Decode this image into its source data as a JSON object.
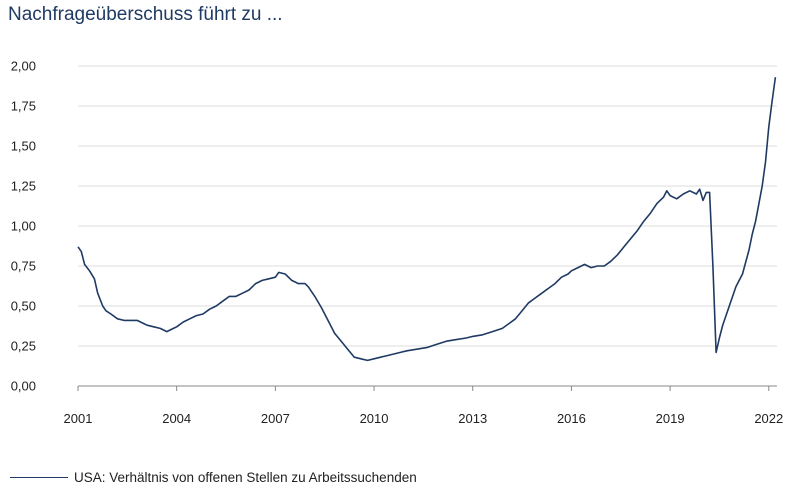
{
  "title": "Nachfrageüberschuss führt zu ...",
  "colors": {
    "series": "#1f3a63",
    "grid": "#dddddd",
    "title": "#1f3a63"
  },
  "chart_data": {
    "type": "line",
    "title": "Nachfrageüberschuss führt zu ...",
    "xlabel": "",
    "ylabel": "",
    "xlim": [
      2001,
      2022.25
    ],
    "ylim": [
      0,
      2
    ],
    "grid": true,
    "legend_position": "bottom-left",
    "x_ticks": [
      2001,
      2004,
      2007,
      2010,
      2013,
      2016,
      2019,
      2022
    ],
    "x_tick_labels": [
      "2001",
      "2004",
      "2007",
      "2010",
      "2013",
      "2016",
      "2019",
      "2022"
    ],
    "y_ticks": [
      0,
      0.25,
      0.5,
      0.75,
      1.0,
      1.25,
      1.5,
      1.75,
      2.0
    ],
    "y_tick_labels": [
      "0,00",
      "0,25",
      "0,50",
      "0,75",
      "1,00",
      "1,25",
      "1,50",
      "1,75",
      "2,00"
    ],
    "series": [
      {
        "name": "USA: Verhältnis von offenen Stellen zu Arbeitssuchenden",
        "x": [
          2001.0,
          2001.1,
          2001.2,
          2001.35,
          2001.5,
          2001.6,
          2001.75,
          2001.85,
          2002.0,
          2002.2,
          2002.4,
          2002.6,
          2002.8,
          2003.0,
          2003.1,
          2003.3,
          2003.5,
          2003.6,
          2003.7,
          2003.9,
          2004.0,
          2004.2,
          2004.4,
          2004.6,
          2004.8,
          2005.0,
          2005.2,
          2005.4,
          2005.6,
          2005.8,
          2006.0,
          2006.2,
          2006.4,
          2006.6,
          2006.8,
          2007.0,
          2007.1,
          2007.3,
          2007.5,
          2007.7,
          2007.9,
          2008.0,
          2008.2,
          2008.4,
          2008.6,
          2008.8,
          2009.0,
          2009.2,
          2009.4,
          2009.6,
          2009.8,
          2010.0,
          2010.2,
          2010.4,
          2010.6,
          2010.8,
          2011.0,
          2011.3,
          2011.6,
          2011.9,
          2012.2,
          2012.5,
          2012.8,
          2013.0,
          2013.3,
          2013.6,
          2013.9,
          2014.1,
          2014.3,
          2014.5,
          2014.7,
          2014.9,
          2015.1,
          2015.3,
          2015.5,
          2015.7,
          2015.9,
          2016.0,
          2016.2,
          2016.4,
          2016.6,
          2016.8,
          2017.0,
          2017.2,
          2017.4,
          2017.6,
          2017.8,
          2018.0,
          2018.2,
          2018.4,
          2018.6,
          2018.8,
          2018.9,
          2019.0,
          2019.2,
          2019.4,
          2019.6,
          2019.8,
          2019.9,
          2020.0,
          2020.1,
          2020.2,
          2020.3,
          2020.4,
          2020.5,
          2020.6,
          2020.8,
          2021.0,
          2021.2,
          2021.4,
          2021.5,
          2021.6,
          2021.8,
          2021.9,
          2022.0,
          2022.1,
          2022.2
        ],
        "values": [
          0.87,
          0.84,
          0.76,
          0.72,
          0.67,
          0.58,
          0.5,
          0.47,
          0.45,
          0.42,
          0.41,
          0.41,
          0.41,
          0.39,
          0.38,
          0.37,
          0.36,
          0.35,
          0.34,
          0.36,
          0.37,
          0.4,
          0.42,
          0.44,
          0.45,
          0.48,
          0.5,
          0.53,
          0.56,
          0.56,
          0.58,
          0.6,
          0.64,
          0.66,
          0.67,
          0.68,
          0.71,
          0.7,
          0.66,
          0.64,
          0.64,
          0.62,
          0.56,
          0.49,
          0.41,
          0.33,
          0.28,
          0.23,
          0.18,
          0.17,
          0.16,
          0.17,
          0.18,
          0.19,
          0.2,
          0.21,
          0.22,
          0.23,
          0.24,
          0.26,
          0.28,
          0.29,
          0.3,
          0.31,
          0.32,
          0.34,
          0.36,
          0.39,
          0.42,
          0.47,
          0.52,
          0.55,
          0.58,
          0.61,
          0.64,
          0.68,
          0.7,
          0.72,
          0.74,
          0.76,
          0.74,
          0.75,
          0.75,
          0.78,
          0.82,
          0.87,
          0.92,
          0.97,
          1.03,
          1.08,
          1.14,
          1.18,
          1.22,
          1.19,
          1.17,
          1.2,
          1.22,
          1.2,
          1.23,
          1.16,
          1.21,
          1.21,
          0.75,
          0.21,
          0.3,
          0.38,
          0.5,
          0.62,
          0.7,
          0.85,
          0.95,
          1.03,
          1.25,
          1.4,
          1.62,
          1.78,
          1.93
        ]
      }
    ]
  }
}
